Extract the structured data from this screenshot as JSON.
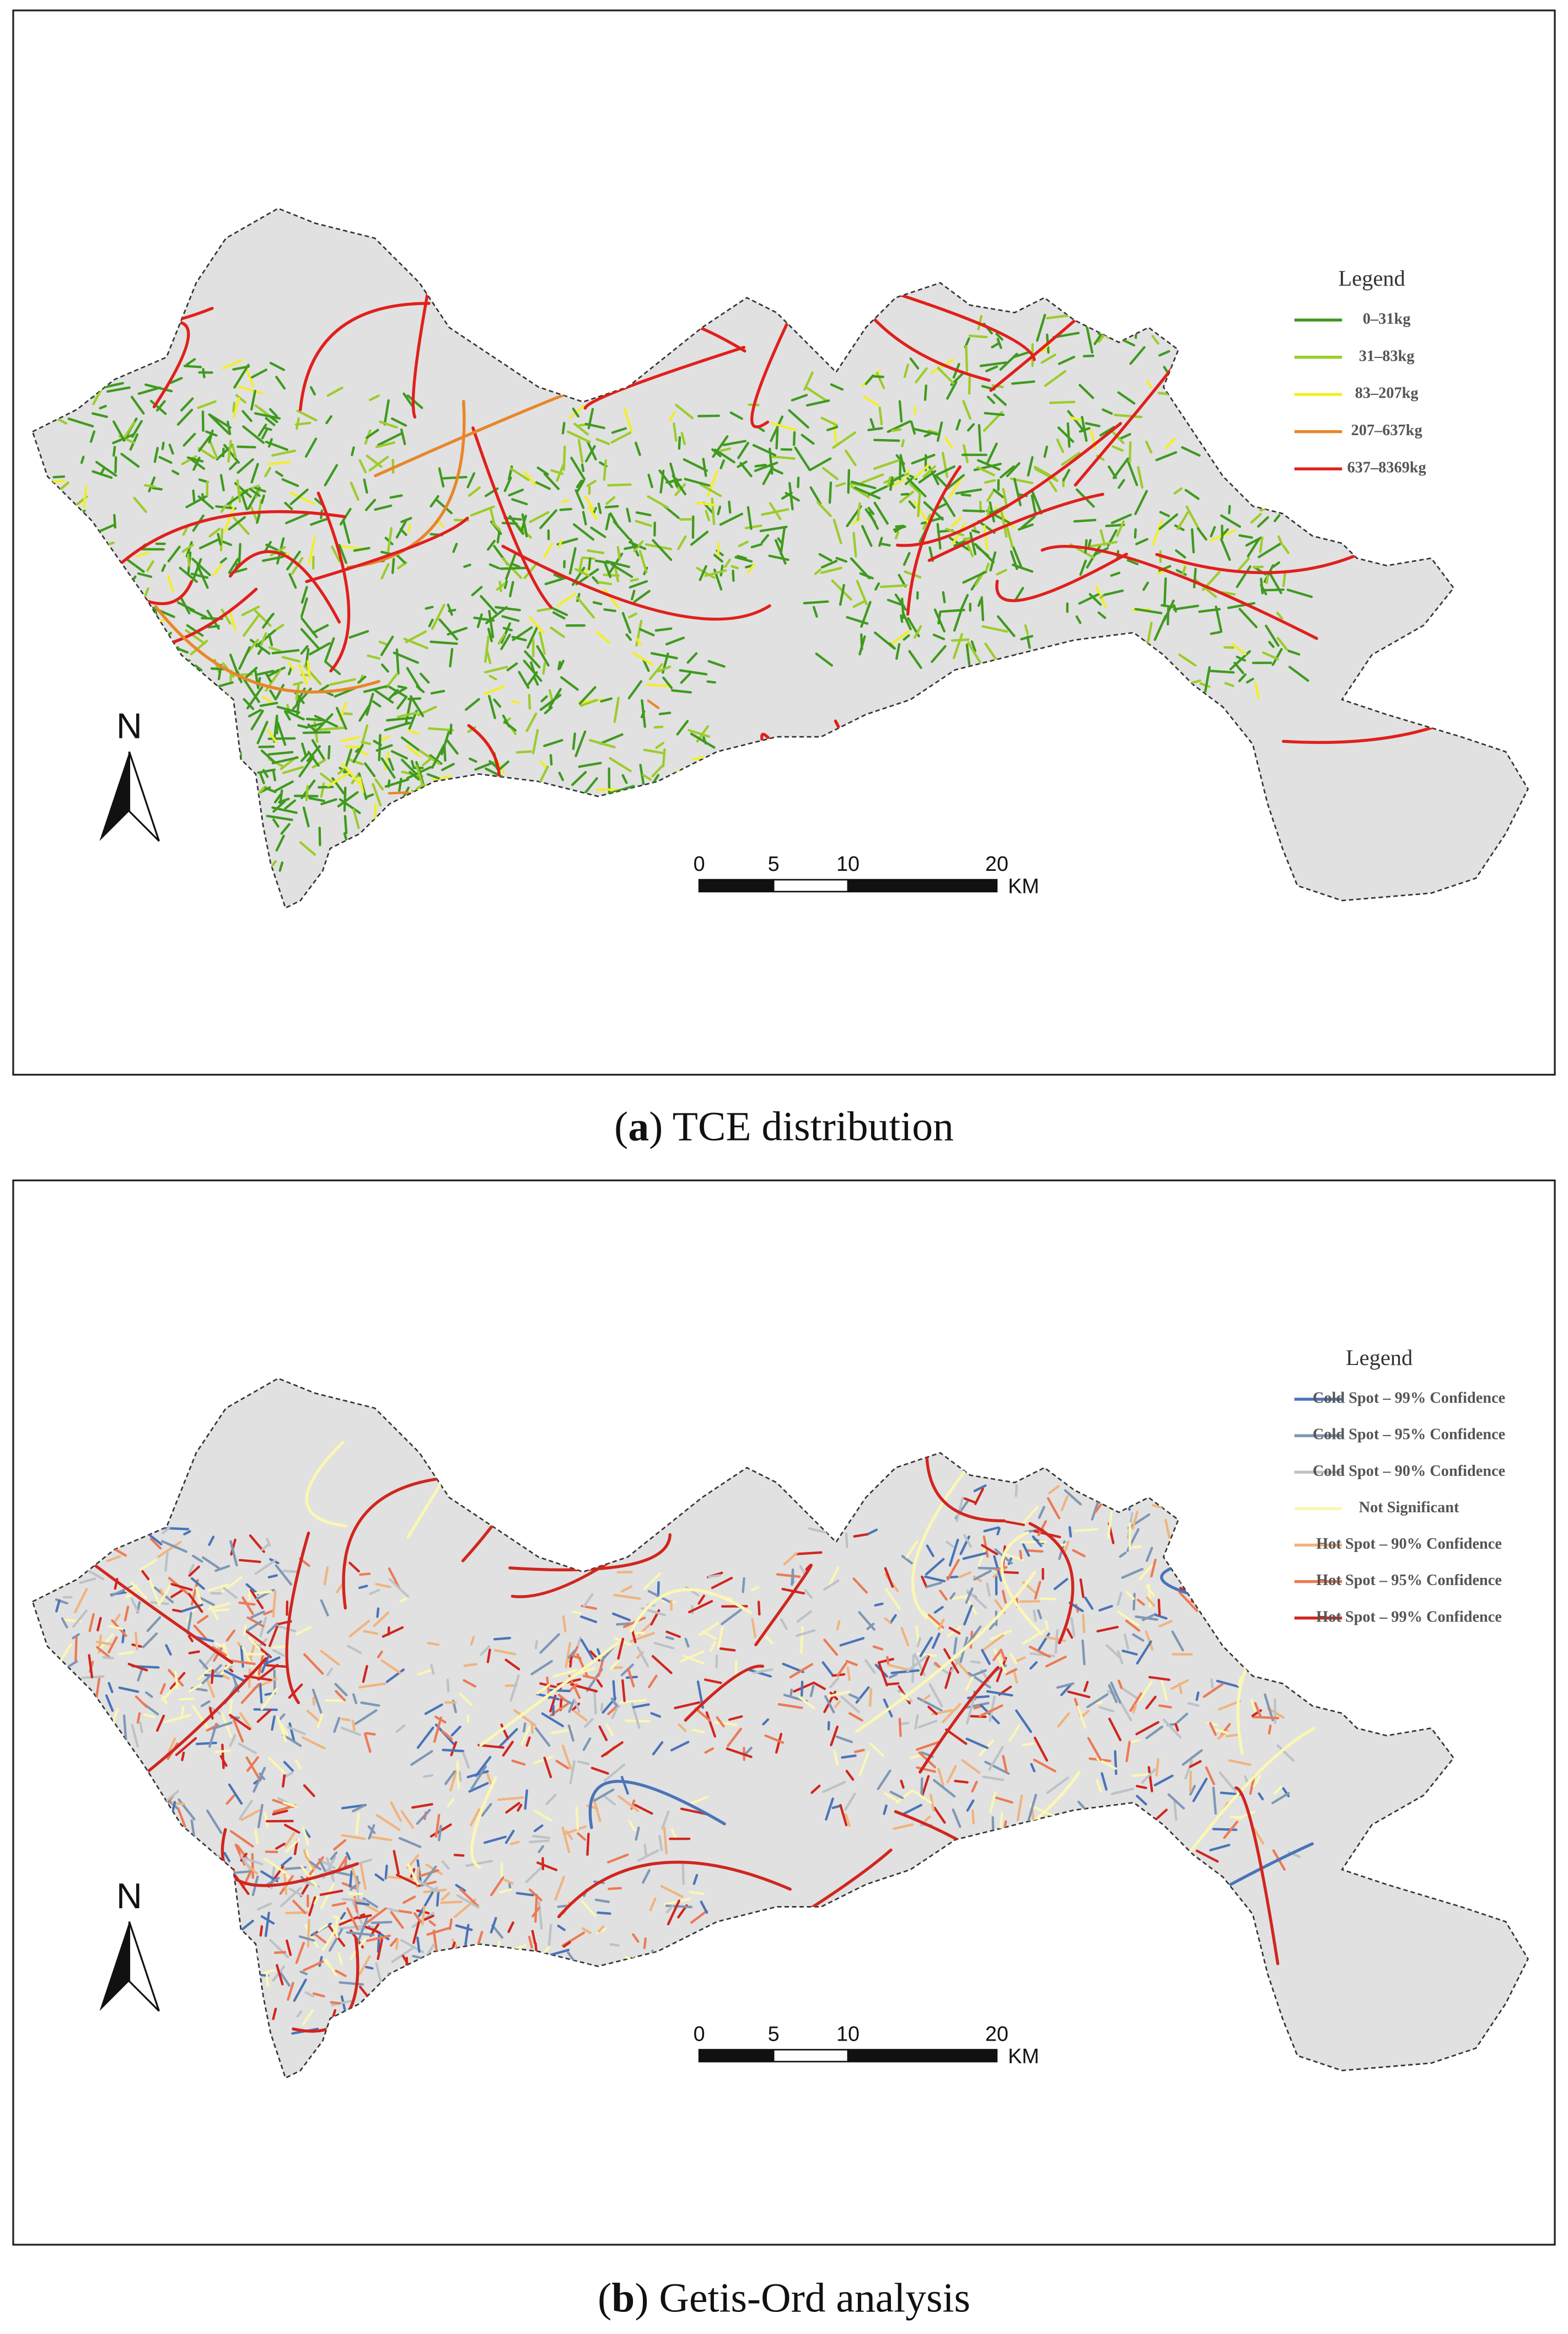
{
  "panels": [
    {
      "caption": [
        "(",
        "a",
        ") TCE distribution"
      ],
      "legend": {
        "title": "Legend",
        "items": [
          {
            "label": "0–31kg",
            "color": "#3f9a1f"
          },
          {
            "label": "31–83kg",
            "color": "#9ccc2a"
          },
          {
            "label": "83–207kg",
            "color": "#f2ee2a"
          },
          {
            "label": "207–637kg",
            "color": "#e8862a"
          },
          {
            "label": "637–8369kg",
            "color": "#e0201c"
          }
        ]
      },
      "north": "N",
      "scale_bar": {
        "ticks": [
          "0",
          "5",
          "10",
          "20"
        ],
        "unit": "KM"
      }
    },
    {
      "caption": [
        "(",
        "b",
        ") Getis-Ord analysis"
      ],
      "legend": {
        "title": "Legend",
        "items": [
          {
            "label": "Cold Spot – 99% Confidence",
            "color": "#4a74b8"
          },
          {
            "label": "Cold Spot – 95% Confidence",
            "color": "#7f97b5"
          },
          {
            "label": "Cold Spot – 90% Confidence",
            "color": "#bcc2c6"
          },
          {
            "label": "Not Significant",
            "color": "#fbf7b4"
          },
          {
            "label": "Hot Spot – 90% Confidence",
            "color": "#f0b47e"
          },
          {
            "label": "Hot Spot – 95% Confidence",
            "color": "#ec7a55"
          },
          {
            "label": "Hot Spot – 99% Confidence",
            "color": "#d0261f"
          }
        ]
      },
      "north": "N",
      "scale_bar": {
        "ticks": [
          "0",
          "5",
          "10",
          "20"
        ],
        "unit": "KM"
      }
    }
  ]
}
